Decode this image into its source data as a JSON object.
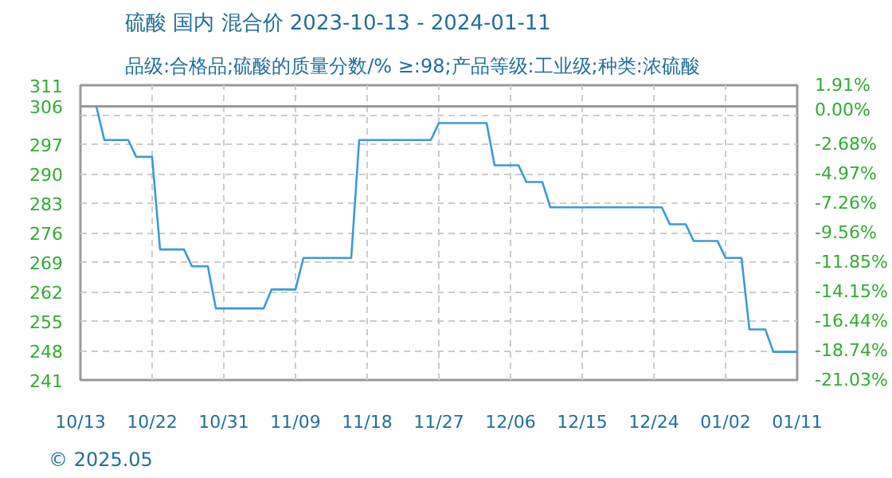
{
  "chart_data": {
    "type": "step",
    "title": "硫酸 国内 混合价 2023-10-13 - 2024-01-11",
    "subtitle": "品级:合格品;硫酸的质量分数/% ≥:98;产品等级:工业级;种类:浓硫酸",
    "annotations": [
      "© 2025.05"
    ],
    "x": [
      "2023-10-13",
      "2023-10-15",
      "2023-10-16",
      "2023-10-19",
      "2023-10-20",
      "2023-10-22",
      "2023-10-23",
      "2023-10-26",
      "2023-10-27",
      "2023-10-29",
      "2023-10-30",
      "2023-11-05",
      "2023-11-06",
      "2023-11-09",
      "2023-11-10",
      "2023-11-16",
      "2023-11-17",
      "2023-11-26",
      "2023-11-27",
      "2023-12-03",
      "2023-12-04",
      "2023-12-07",
      "2023-12-08",
      "2023-12-10",
      "2023-12-11",
      "2023-12-25",
      "2023-12-26",
      "2023-12-28",
      "2023-12-29",
      "2024-01-01",
      "2024-01-02",
      "2024-01-04",
      "2024-01-05",
      "2024-01-07",
      "2024-01-08",
      "2024-01-11"
    ],
    "series": [
      {
        "color": "#3a9ad9",
        "values": [
          306,
          306,
          298,
          298,
          294,
          294,
          272,
          272,
          268,
          268,
          258,
          258,
          262.5,
          262.5,
          270,
          270,
          298,
          298,
          302,
          302,
          292,
          292,
          288,
          288,
          282,
          282,
          278,
          278,
          274,
          274,
          270,
          270,
          253,
          253,
          247.7,
          247.7
        ]
      }
    ],
    "xlim": [
      "2023-10-13",
      "2024-01-11"
    ],
    "xticks": [
      {
        "value": "2023-10-13",
        "label": "10/13"
      },
      {
        "value": "2023-10-22",
        "label": "10/22"
      },
      {
        "value": "2023-10-31",
        "label": "10/31"
      },
      {
        "value": "2023-11-09",
        "label": "11/09"
      },
      {
        "value": "2023-11-18",
        "label": "11/18"
      },
      {
        "value": "2023-11-27",
        "label": "11/27"
      },
      {
        "value": "2023-12-06",
        "label": "12/06"
      },
      {
        "value": "2023-12-15",
        "label": "12/15"
      },
      {
        "value": "2023-12-24",
        "label": "12/24"
      },
      {
        "value": "2024-01-02",
        "label": "01/02"
      },
      {
        "value": "2024-01-11",
        "label": "01/11"
      }
    ],
    "ylim": [
      241,
      311
    ],
    "yticks": [
      241,
      248,
      255,
      262,
      269,
      276,
      283,
      290,
      297,
      {
        "value": 304,
        "label": null
      },
      306,
      311
    ],
    "y2lim": [
      -21.03,
      1.91
    ],
    "y2ticks": [
      {
        "value": -21.03,
        "label": "-21.03%"
      },
      {
        "value": -18.74,
        "label": "-18.74%"
      },
      {
        "value": -16.44,
        "label": "-16.44%"
      },
      {
        "value": -14.15,
        "label": "-14.15%"
      },
      {
        "value": -11.85,
        "label": "-11.85%"
      },
      {
        "value": -9.56,
        "label": "-9.56%"
      },
      {
        "value": -7.26,
        "label": "-7.26%"
      },
      {
        "value": -4.97,
        "label": "-4.97%"
      },
      {
        "value": -2.68,
        "label": "-2.68%"
      },
      {
        "value": 0,
        "label": "0.00%"
      },
      {
        "value": 1.91,
        "label": "1.91%"
      }
    ],
    "ref_lines": [
      {
        "axis": "y",
        "value": 306,
        "color": "#999999",
        "line_style": "solid"
      }
    ],
    "grid": true,
    "marker": "none",
    "line_style": "solid"
  }
}
